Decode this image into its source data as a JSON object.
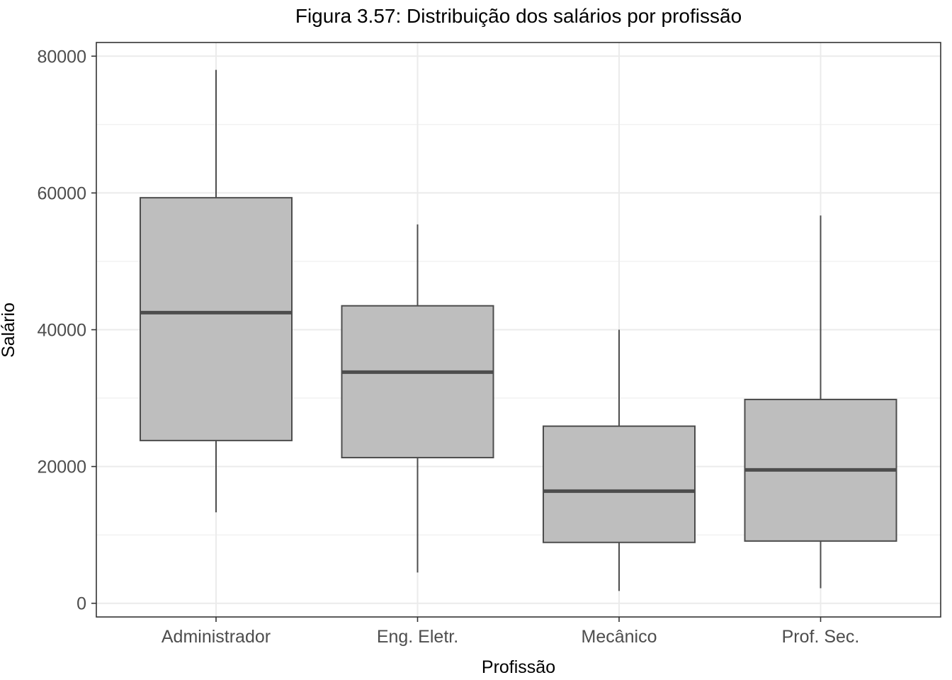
{
  "chart_data": {
    "type": "boxplot",
    "title": "Figura 3.57: Distribuição dos salários por profissão",
    "xlabel": "Profissão",
    "ylabel": "Salário",
    "ylim": [
      -2000,
      82000
    ],
    "yticks": [
      0,
      20000,
      40000,
      60000,
      80000
    ],
    "yticklabels": [
      "0",
      "20000",
      "40000",
      "60000",
      "80000"
    ],
    "grid": true,
    "categories": [
      "Administrador",
      "Eng. Eletr.",
      "Mecânico",
      "Prof. Sec."
    ],
    "boxes": [
      {
        "category": "Administrador",
        "whisker_low": 13300,
        "q1": 23800,
        "median": 42500,
        "q3": 59300,
        "whisker_high": 78000
      },
      {
        "category": "Eng. Eletr.",
        "whisker_low": 4500,
        "q1": 21300,
        "median": 33800,
        "q3": 43500,
        "whisker_high": 55400
      },
      {
        "category": "Mecânico",
        "whisker_low": 1800,
        "q1": 8900,
        "median": 16400,
        "q3": 25900,
        "whisker_high": 40000
      },
      {
        "category": "Prof. Sec.",
        "whisker_low": 2200,
        "q1": 9100,
        "median": 19500,
        "q3": 29800,
        "whisker_high": 56700
      }
    ],
    "colors": {
      "box_fill": "#bebebe",
      "box_line": "#4d4d4d",
      "grid": "#ebebeb",
      "panel_border": "#333333"
    }
  }
}
